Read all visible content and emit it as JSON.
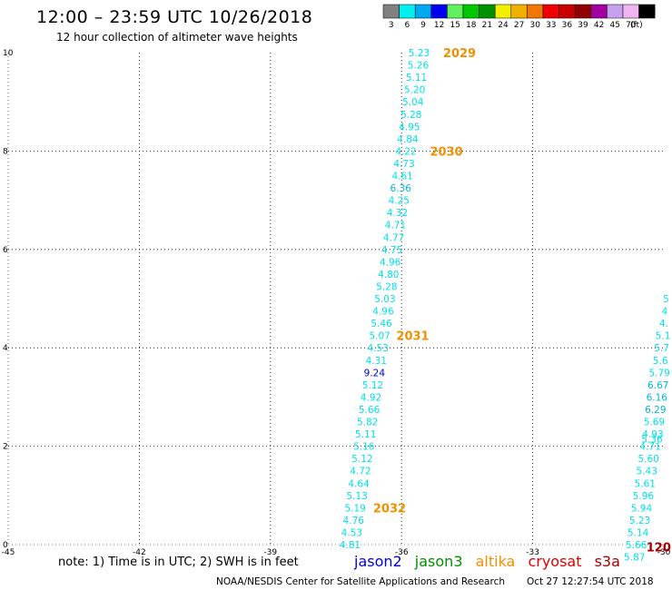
{
  "header": {
    "title": "12:00 – 23:59 UTC 10/26/2018",
    "subtitle": "12 hour collection of altimeter wave heights"
  },
  "colorbar": {
    "unit": "(ft)",
    "swatches": [
      {
        "color": "#808080",
        "label": "3"
      },
      {
        "color": "#00f0f0",
        "label": "6"
      },
      {
        "color": "#00a8f0",
        "label": "9"
      },
      {
        "color": "#0000f0",
        "label": "12"
      },
      {
        "color": "#60f060",
        "label": "15"
      },
      {
        "color": "#00c800",
        "label": "18"
      },
      {
        "color": "#009000",
        "label": "21"
      },
      {
        "color": "#f0f000",
        "label": "24"
      },
      {
        "color": "#f0b000",
        "label": "27"
      },
      {
        "color": "#f07800",
        "label": "30"
      },
      {
        "color": "#f00000",
        "label": "33"
      },
      {
        "color": "#c80000",
        "label": "36"
      },
      {
        "color": "#900000",
        "label": "39"
      },
      {
        "color": "#a000a0",
        "label": "42"
      },
      {
        "color": "#c8a0f0",
        "label": "45"
      },
      {
        "color": "#f0b4f0",
        "label": "70"
      },
      {
        "color": "#000000",
        "label": ""
      }
    ]
  },
  "chart_data": {
    "type": "scatter",
    "xlim": [
      -45,
      -30
    ],
    "ylim": [
      0,
      10
    ],
    "xticks": [
      -45,
      -42,
      -39,
      -36,
      -33,
      -30
    ],
    "yticks": [
      0,
      2,
      4,
      6,
      8,
      10
    ],
    "grid": true,
    "colors": {
      "swh_low": "#00e0e8",
      "swh_mid": "#00b4dc",
      "swh_high": "#0000e0",
      "time": "#f09000",
      "time_s3a": "#a00000"
    },
    "tracks": [
      {
        "name": "track-west",
        "points": [
          {
            "x": -35.6,
            "y": 10.0,
            "v": "5.23"
          },
          {
            "x": -35.62,
            "y": 9.75,
            "v": "5.26"
          },
          {
            "x": -35.66,
            "y": 9.5,
            "v": "5.11"
          },
          {
            "x": -35.7,
            "y": 9.25,
            "v": "5.20"
          },
          {
            "x": -35.74,
            "y": 9.0,
            "v": "5.04"
          },
          {
            "x": -35.78,
            "y": 8.75,
            "v": "5.28"
          },
          {
            "x": -35.82,
            "y": 8.5,
            "v": "4.95"
          },
          {
            "x": -35.86,
            "y": 8.25,
            "v": "4.84"
          },
          {
            "x": -35.9,
            "y": 8.0,
            "v": "4.22"
          },
          {
            "x": -35.94,
            "y": 7.75,
            "v": "4.73"
          },
          {
            "x": -35.98,
            "y": 7.5,
            "v": "4.61"
          },
          {
            "x": -36.02,
            "y": 7.25,
            "v": "6.36"
          },
          {
            "x": -36.06,
            "y": 7.0,
            "v": "4.25"
          },
          {
            "x": -36.1,
            "y": 6.75,
            "v": "4.32"
          },
          {
            "x": -36.14,
            "y": 6.5,
            "v": "4.71"
          },
          {
            "x": -36.18,
            "y": 6.25,
            "v": "4.77"
          },
          {
            "x": -36.22,
            "y": 6.0,
            "v": "4.75"
          },
          {
            "x": -36.26,
            "y": 5.75,
            "v": "4.96"
          },
          {
            "x": -36.3,
            "y": 5.5,
            "v": "4.80"
          },
          {
            "x": -36.34,
            "y": 5.25,
            "v": "5.28"
          },
          {
            "x": -36.38,
            "y": 5.0,
            "v": "5.03"
          },
          {
            "x": -36.42,
            "y": 4.75,
            "v": "4.96"
          },
          {
            "x": -36.46,
            "y": 4.5,
            "v": "5.46"
          },
          {
            "x": -36.5,
            "y": 4.25,
            "v": "5.07"
          },
          {
            "x": -36.54,
            "y": 4.0,
            "v": "4.53"
          },
          {
            "x": -36.58,
            "y": 3.75,
            "v": "4.31"
          },
          {
            "x": -36.62,
            "y": 3.5,
            "v": "9.24"
          },
          {
            "x": -36.66,
            "y": 3.25,
            "v": "5.12"
          },
          {
            "x": -36.7,
            "y": 3.0,
            "v": "4.92"
          },
          {
            "x": -36.74,
            "y": 2.75,
            "v": "5.66"
          },
          {
            "x": -36.78,
            "y": 2.5,
            "v": "5.82"
          },
          {
            "x": -36.82,
            "y": 2.25,
            "v": "5.11"
          },
          {
            "x": -36.86,
            "y": 2.0,
            "v": "5.16"
          },
          {
            "x": -36.9,
            "y": 1.75,
            "v": "5.12"
          },
          {
            "x": -36.94,
            "y": 1.5,
            "v": "4.72"
          },
          {
            "x": -36.98,
            "y": 1.25,
            "v": "4.64"
          },
          {
            "x": -37.02,
            "y": 1.0,
            "v": "5.13"
          },
          {
            "x": -37.06,
            "y": 0.75,
            "v": "5.19"
          },
          {
            "x": -37.1,
            "y": 0.5,
            "v": "4.76"
          },
          {
            "x": -37.14,
            "y": 0.25,
            "v": "4.53"
          },
          {
            "x": -37.18,
            "y": 0.0,
            "v": "4.81"
          }
        ],
        "times": [
          {
            "x": -35.05,
            "y": 10.0,
            "label": "2029"
          },
          {
            "x": -35.35,
            "y": 8.0,
            "label": "2030"
          },
          {
            "x": -36.12,
            "y": 4.25,
            "label": "2031"
          },
          {
            "x": -36.65,
            "y": 0.75,
            "label": "2032"
          }
        ]
      },
      {
        "name": "track-east",
        "points": [
          {
            "x": -29.95,
            "y": 5.0,
            "v": "5"
          },
          {
            "x": -29.98,
            "y": 4.75,
            "v": "4"
          },
          {
            "x": -30.0,
            "y": 4.5,
            "v": "4."
          },
          {
            "x": -30.02,
            "y": 4.25,
            "v": "5.1"
          },
          {
            "x": -30.05,
            "y": 4.0,
            "v": "5.7"
          },
          {
            "x": -30.08,
            "y": 3.75,
            "v": "5.6"
          },
          {
            "x": -30.1,
            "y": 3.5,
            "v": "5.79"
          },
          {
            "x": -30.13,
            "y": 3.25,
            "v": "6.67"
          },
          {
            "x": -30.16,
            "y": 3.0,
            "v": "6.16"
          },
          {
            "x": -30.19,
            "y": 2.75,
            "v": "6.29"
          },
          {
            "x": -30.22,
            "y": 2.5,
            "v": "5.69"
          },
          {
            "x": -30.25,
            "y": 2.25,
            "v": "4.93"
          },
          {
            "x": -30.27,
            "y": 2.15,
            "v": "5.36"
          },
          {
            "x": -30.31,
            "y": 2.0,
            "v": "4.71"
          },
          {
            "x": -30.35,
            "y": 1.75,
            "v": "5.60"
          },
          {
            "x": -30.39,
            "y": 1.5,
            "v": "5.43"
          },
          {
            "x": -30.43,
            "y": 1.25,
            "v": "5.61"
          },
          {
            "x": -30.47,
            "y": 1.0,
            "v": "5.96"
          },
          {
            "x": -30.51,
            "y": 0.75,
            "v": "5.94"
          },
          {
            "x": -30.55,
            "y": 0.5,
            "v": "5.23"
          },
          {
            "x": -30.59,
            "y": 0.25,
            "v": "5.14"
          },
          {
            "x": -30.63,
            "y": 0.0,
            "v": "5.66"
          },
          {
            "x": -30.67,
            "y": -0.25,
            "v": "5.87"
          }
        ],
        "times": [
          {
            "x": -30.4,
            "y": -0.05,
            "label": "120"
          }
        ]
      }
    ]
  },
  "footer": {
    "note": "note:  1) Time is in UTC;  2) SWH is in feet",
    "satellites": [
      {
        "name": "jason2",
        "color": "#0000e0"
      },
      {
        "name": "jason3",
        "color": "#009000"
      },
      {
        "name": "altika",
        "color": "#f09000"
      },
      {
        "name": "cryosat",
        "color": "#e00000"
      },
      {
        "name": "s3a",
        "color": "#a00000"
      }
    ],
    "credit": "NOAA/NESDIS Center for Satellite Applications and Research",
    "timestamp": "Oct 27 12:27:54 UTC 2018"
  }
}
